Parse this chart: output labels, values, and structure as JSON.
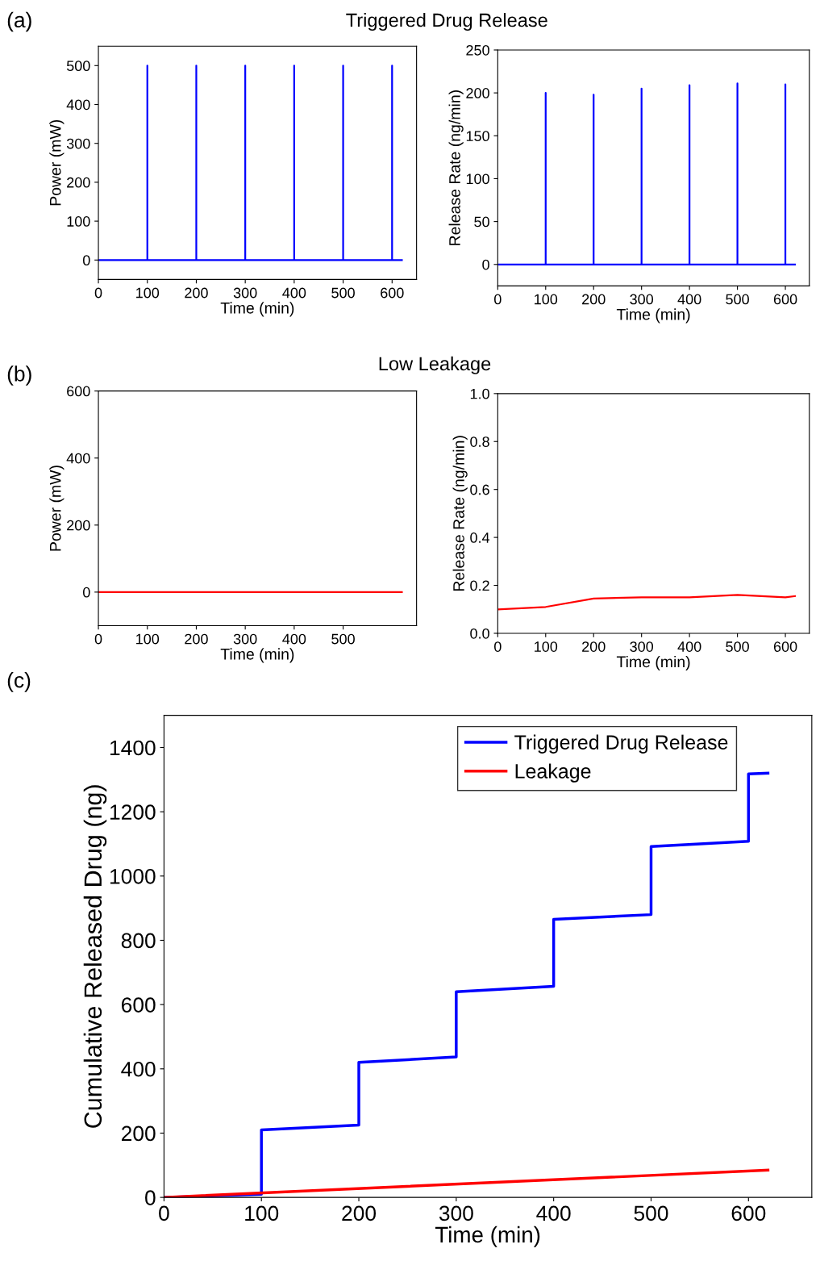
{
  "chart_data": [
    {
      "type": "line",
      "title": "Triggered Drug Release",
      "annotations": [
        "(a)"
      ],
      "xlabel": "Time (min)",
      "ylabel": "Power (mW)",
      "xlim": [
        0,
        650
      ],
      "xticks": [
        0,
        100,
        200,
        300,
        400,
        500,
        600
      ],
      "ylim": [
        -50,
        550
      ],
      "yticks": [
        0,
        100,
        200,
        300,
        400,
        500
      ],
      "grid": false,
      "legend": false,
      "series": [
        {
          "color": "#0000ff",
          "x": [
            0,
            100,
            100,
            100,
            200,
            200,
            200,
            300,
            300,
            300,
            400,
            400,
            400,
            500,
            500,
            500,
            600,
            600,
            600,
            620
          ],
          "values": [
            0,
            0,
            500,
            0,
            0,
            500,
            0,
            0,
            500,
            0,
            0,
            500,
            0,
            0,
            500,
            0,
            0,
            500,
            0,
            0
          ]
        }
      ]
    },
    {
      "type": "line",
      "xlabel": "Time (min)",
      "ylabel": "Release Rate (ng/min)",
      "xlim": [
        0,
        650
      ],
      "xticks": [
        0,
        100,
        200,
        300,
        400,
        500,
        600
      ],
      "ylim": [
        -25,
        250
      ],
      "yticks": [
        0,
        50,
        100,
        150,
        200,
        250
      ],
      "grid": false,
      "legend": false,
      "series": [
        {
          "color": "#0000ff",
          "x": [
            0,
            100,
            100,
            100,
            200,
            200,
            200,
            300,
            300,
            300,
            400,
            400,
            400,
            500,
            500,
            500,
            600,
            600,
            600,
            620
          ],
          "values": [
            0,
            0,
            200,
            0,
            0,
            198,
            0,
            0,
            205,
            0,
            0,
            209,
            0,
            0,
            211,
            0,
            0,
            210,
            0,
            0
          ]
        }
      ]
    },
    {
      "type": "line",
      "title": "Low Leakage",
      "annotations": [
        "(b)"
      ],
      "xlabel": "Time (min)",
      "ylabel": "Power (mW)",
      "xlim": [
        0,
        650
      ],
      "xticks": [
        0,
        100,
        200,
        300,
        400,
        500
      ],
      "ylim": [
        -100,
        600
      ],
      "yticks": [
        0,
        200,
        400,
        600
      ],
      "grid": false,
      "legend": false,
      "series": [
        {
          "color": "#ff0000",
          "x": [
            0,
            620
          ],
          "values": [
            0,
            0
          ]
        }
      ]
    },
    {
      "type": "line",
      "xlabel": "Time (min)",
      "ylabel": "Release Rate (ng/min)",
      "xlim": [
        0,
        650
      ],
      "xticks": [
        0,
        100,
        200,
        300,
        400,
        500,
        600
      ],
      "ylim": [
        0,
        1.0
      ],
      "yticks": [
        {
          "value": 0,
          "label": "0.0"
        },
        0.2,
        0.4,
        0.6,
        0.8,
        {
          "value": 1,
          "label": "1.0"
        }
      ],
      "grid": false,
      "legend": false,
      "series": [
        {
          "color": "#ff0000",
          "x": [
            0,
            100,
            200,
            300,
            400,
            500,
            600,
            620
          ],
          "values": [
            0.1,
            0.11,
            0.145,
            0.15,
            0.15,
            0.16,
            0.15,
            0.155
          ]
        }
      ]
    },
    {
      "type": "line",
      "annotations": [
        "(c)"
      ],
      "xlabel": "Time (min)",
      "ylabel": "Cumulative Released Drug (ng)",
      "xlim": [
        0,
        665
      ],
      "xticks": [
        0,
        100,
        200,
        300,
        400,
        500,
        600
      ],
      "ylim": [
        0,
        1500
      ],
      "yticks": [
        0,
        200,
        400,
        600,
        800,
        1000,
        1200,
        1400
      ],
      "grid": false,
      "legend": "top right",
      "series": [
        {
          "name": "Triggered Drug Release",
          "color": "#0000ff",
          "x": [
            0,
            100,
            100,
            200,
            200,
            300,
            300,
            400,
            400,
            500,
            500,
            600,
            600,
            620
          ],
          "values": [
            0,
            10,
            210,
            225,
            420,
            437,
            640,
            657,
            865,
            880,
            1092,
            1108,
            1318,
            1320
          ]
        },
        {
          "name": "Leakage",
          "color": "#ff0000",
          "x": [
            0,
            620
          ],
          "values": [
            0,
            85
          ]
        }
      ]
    }
  ]
}
